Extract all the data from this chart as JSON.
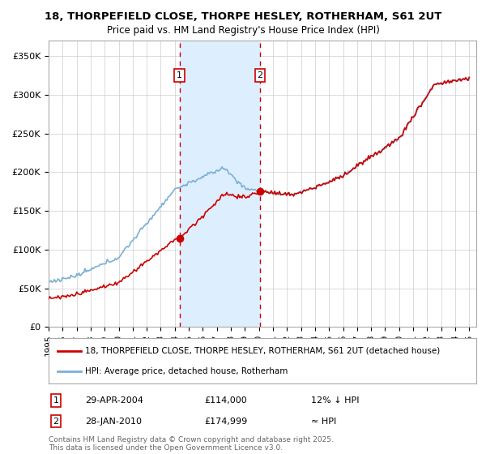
{
  "title_line1": "18, THORPEFIELD CLOSE, THORPE HESLEY, ROTHERHAM, S61 2UT",
  "title_line2": "Price paid vs. HM Land Registry's House Price Index (HPI)",
  "ylim": [
    0,
    370000
  ],
  "yticks": [
    0,
    50000,
    100000,
    150000,
    200000,
    250000,
    300000,
    350000
  ],
  "ytick_labels": [
    "£0",
    "£50K",
    "£100K",
    "£150K",
    "£200K",
    "£250K",
    "£300K",
    "£350K"
  ],
  "xlim_start": 1995,
  "xlim_end": 2025.5,
  "purchase1_date": 2004.33,
  "purchase1_price": 114000,
  "purchase2_date": 2010.08,
  "purchase2_price": 174999,
  "hpi_color": "#7ab0d4",
  "price_color": "#cc0000",
  "shade_color": "#ddeeff",
  "vline_color": "#cc0000",
  "legend_label1": "18, THORPEFIELD CLOSE, THORPE HESLEY, ROTHERHAM, S61 2UT (detached house)",
  "legend_label2": "HPI: Average price, detached house, Rotherham",
  "annotation1_date": "29-APR-2004",
  "annotation1_price": "£114,000",
  "annotation1_hpi": "12% ↓ HPI",
  "annotation2_date": "28-JAN-2010",
  "annotation2_price": "£174,999",
  "annotation2_hpi": "≈ HPI",
  "footer": "Contains HM Land Registry data © Crown copyright and database right 2025.\nThis data is licensed under the Open Government Licence v3.0.",
  "background_color": "#ffffff",
  "grid_color": "#cccccc"
}
